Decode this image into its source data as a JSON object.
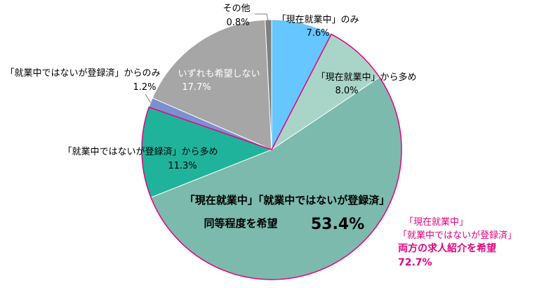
{
  "chart_data": {
    "type": "pie",
    "title": "",
    "slices": [
      {
        "label": "「現在就業中」のみ",
        "value": 7.6,
        "value_text": "7.6%",
        "color": "#66c6ff"
      },
      {
        "label": "「現在就業中」から多め",
        "value": 8.0,
        "value_text": "8.0%",
        "color": "#a9d5c9"
      },
      {
        "label": [
          "「現在就業中」「就業中ではないが登録済」",
          "同等程度を希望"
        ],
        "value": 53.4,
        "value_text": "53.4%",
        "color": "#7bbaad"
      },
      {
        "label": "「就業中ではないが登録済」から多め",
        "value": 11.3,
        "value_text": "11.3%",
        "color": "#1fb39b"
      },
      {
        "label": "「就業中ではないが登録済」からのみ",
        "value": 1.2,
        "value_text": "1.2%",
        "color": "#7d8fd0"
      },
      {
        "label": "いずれも希望しない",
        "value": 17.7,
        "value_text": "17.7%",
        "color": "#a6a6a6"
      },
      {
        "label": "その他",
        "value": 0.8,
        "value_text": "0.8%",
        "color": "#7f7f7f"
      }
    ],
    "annotation": {
      "lines": [
        "「現在就業中」",
        "「就業中ではないが登録済」",
        "両方の求人紹介を希望",
        "72.7%"
      ],
      "color": "#e6007e",
      "outline_color": "#e6007e"
    }
  }
}
